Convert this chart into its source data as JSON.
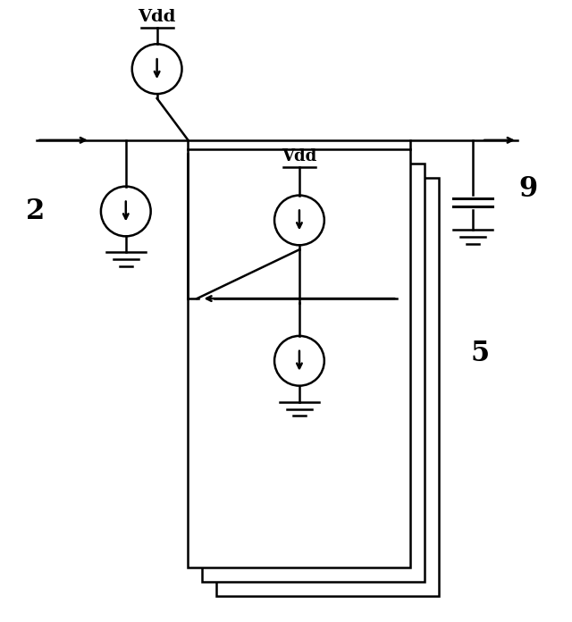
{
  "bg_color": "#ffffff",
  "line_color": "#000000",
  "text_color": "#000000",
  "fig_width": 6.4,
  "fig_height": 6.96,
  "dpi": 100,
  "label_2": "2",
  "label_5": "5",
  "label_9": "9",
  "label_vdd": "Vdd"
}
